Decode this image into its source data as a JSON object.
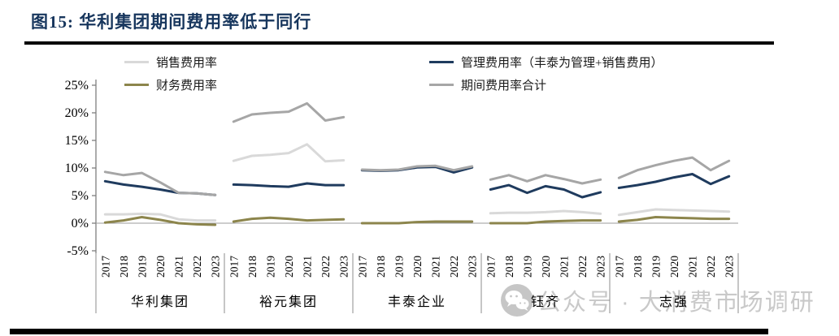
{
  "title": "图15: 华利集团期间费用率低于同行",
  "watermark": {
    "icon": "wechat-icon",
    "text": "公众号 · 大消费市场调研"
  },
  "chart_data": {
    "type": "line",
    "title": "图15: 华利集团期间费用率低于同行",
    "xlabel": "",
    "ylabel": "",
    "grid": false,
    "legend_position": "top",
    "y_axis": {
      "min": -5,
      "max": 25,
      "unit": "%",
      "ticks": [
        "25%",
        "20%",
        "15%",
        "10%",
        "5%",
        "0%",
        "-5%"
      ]
    },
    "groups": [
      "华利集团",
      "裕元集团",
      "丰泰企业",
      "钰齐",
      "志强"
    ],
    "years": [
      "2017",
      "2018",
      "2019",
      "2020",
      "2021",
      "2022",
      "2023"
    ],
    "series": [
      {
        "key": "sales",
        "name": "销售费用率",
        "color": "#d9d9d9",
        "values_by_group": [
          [
            1.6,
            1.6,
            1.7,
            1.6,
            0.7,
            0.5,
            0.5
          ],
          [
            11.3,
            12.2,
            12.4,
            12.7,
            14.3,
            11.2,
            11.4
          ],
          null,
          [
            1.8,
            1.9,
            1.9,
            2.0,
            2.2,
            2.0,
            1.7
          ],
          [
            1.5,
            2.0,
            2.5,
            2.4,
            2.3,
            2.2,
            2.1
          ]
        ]
      },
      {
        "key": "finance",
        "name": "财务费用率",
        "color": "#8c854c",
        "values_by_group": [
          [
            0.1,
            0.5,
            1.1,
            0.6,
            0.0,
            -0.2,
            -0.3
          ],
          [
            0.3,
            0.8,
            1.0,
            0.8,
            0.5,
            0.6,
            0.7
          ],
          [
            0.0,
            0.0,
            0.0,
            0.2,
            0.3,
            0.3,
            0.3
          ],
          [
            0.0,
            0.0,
            0.0,
            0.3,
            0.4,
            0.5,
            0.5
          ],
          [
            0.3,
            0.6,
            1.1,
            1.0,
            0.9,
            0.8,
            0.8
          ]
        ]
      },
      {
        "key": "management",
        "name": "管理费用率（丰泰为管理+销售费用）",
        "color": "#1f3b5e",
        "values_by_group": [
          [
            7.6,
            7.0,
            6.6,
            6.1,
            5.5,
            5.4,
            5.1
          ],
          [
            7.0,
            6.9,
            6.7,
            6.6,
            7.2,
            6.9,
            6.9
          ],
          [
            9.6,
            9.5,
            9.6,
            10.1,
            10.2,
            9.2,
            10.1
          ],
          [
            6.1,
            6.9,
            5.5,
            6.7,
            6.1,
            4.7,
            5.6
          ],
          [
            6.4,
            6.9,
            7.5,
            8.3,
            8.9,
            7.1,
            8.5
          ]
        ]
      },
      {
        "key": "total",
        "name": "期间费用率合计",
        "color": "#a6a6a6",
        "values_by_group": [
          [
            9.3,
            8.7,
            9.1,
            7.4,
            5.5,
            5.4,
            5.1
          ],
          [
            18.4,
            19.7,
            20.0,
            20.2,
            21.7,
            18.6,
            19.2
          ],
          [
            9.7,
            9.6,
            9.7,
            10.3,
            10.4,
            9.6,
            10.3
          ],
          [
            7.9,
            8.7,
            7.6,
            8.7,
            8.0,
            7.2,
            7.9
          ],
          [
            8.2,
            9.6,
            10.5,
            11.3,
            11.9,
            9.6,
            11.3
          ]
        ]
      }
    ]
  }
}
